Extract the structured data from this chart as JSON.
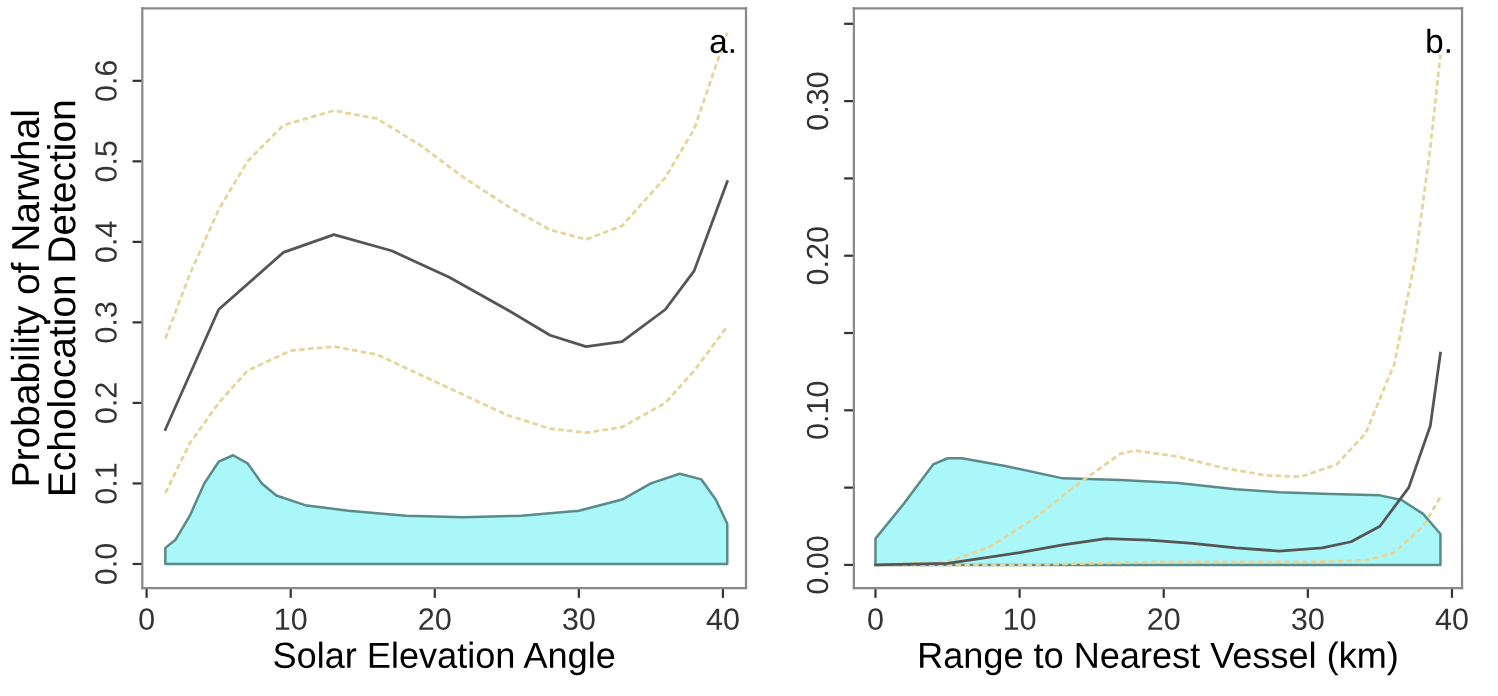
{
  "chart_data": [
    {
      "type": "line",
      "ylabel": "Probability of Narwhal\nEcholocation Detection",
      "xlabel": "Solar Elevation Angle",
      "annotations": [
        "a."
      ],
      "xlim": [
        -0.3,
        41.6
      ],
      "ylim": [
        -0.03,
        0.69
      ],
      "xticks": [
        0,
        10,
        20,
        30,
        40
      ],
      "yticks": [
        {
          "value": 0,
          "label": "0.0"
        },
        0.1,
        0.2,
        0.3,
        0.4,
        0.5,
        0.6
      ],
      "grid": false,
      "legend": false,
      "series": [
        {
          "type": "area",
          "color": "#aaf7fa",
          "x": [
            1.3,
            2,
            3,
            4,
            5,
            6,
            7,
            8,
            9,
            11,
            14,
            18,
            22,
            26,
            30,
            33,
            35,
            37,
            38.5,
            39.5,
            40.3
          ],
          "values": [
            0.02,
            0.03,
            0.06,
            0.1,
            0.127,
            0.135,
            0.125,
            0.1,
            0.085,
            0.073,
            0.066,
            0.06,
            0.058,
            0.06,
            0.066,
            0.08,
            0.1,
            0.112,
            0.105,
            0.08,
            0.05
          ]
        },
        {
          "color": "#e6d49a",
          "line_style": "dotted",
          "x": [
            1.3,
            3,
            5,
            7,
            9.5,
            13,
            16,
            19,
            22,
            25,
            28,
            30.5,
            33,
            36,
            38,
            40.3
          ],
          "values": [
            0.28,
            0.36,
            0.44,
            0.5,
            0.545,
            0.563,
            0.553,
            0.52,
            0.48,
            0.445,
            0.415,
            0.403,
            0.42,
            0.48,
            0.54,
            0.66
          ]
        },
        {
          "color": "#e6d49a",
          "line_style": "dotted",
          "x": [
            1.3,
            3,
            5,
            7,
            10,
            13,
            16,
            19,
            22,
            25,
            28,
            30.5,
            33,
            36,
            38,
            40.3
          ],
          "values": [
            0.088,
            0.15,
            0.2,
            0.24,
            0.265,
            0.27,
            0.26,
            0.235,
            0.21,
            0.185,
            0.168,
            0.163,
            0.17,
            0.2,
            0.24,
            0.295
          ]
        },
        {
          "color": "#555555",
          "line_style": "solid",
          "x": [
            1.3,
            5,
            9.5,
            13,
            17,
            21,
            25,
            28,
            30.5,
            33,
            36,
            38,
            40.3
          ],
          "values": [
            0.167,
            0.316,
            0.387,
            0.409,
            0.389,
            0.356,
            0.316,
            0.284,
            0.27,
            0.276,
            0.316,
            0.364,
            0.475
          ]
        }
      ]
    },
    {
      "type": "line",
      "xlabel": "Range to Nearest Vessel (km)",
      "annotations": [
        "b."
      ],
      "xlim": [
        -1.5,
        40.7
      ],
      "ylim": [
        -0.015,
        0.36
      ],
      "xticks": [
        0,
        10,
        20,
        30,
        40
      ],
      "yticks": [
        {
          "value": 0,
          "label": "0.00"
        },
        {
          "value": 0.05,
          "label": null
        },
        {
          "value": 0.1,
          "label": "0.10"
        },
        {
          "value": 0.15,
          "label": null
        },
        {
          "value": 0.2,
          "label": "0.20"
        },
        {
          "value": 0.25,
          "label": null
        },
        {
          "value": 0.3,
          "label": "0.30"
        },
        {
          "value": 0.35,
          "label": null
        }
      ],
      "grid": false,
      "legend": false,
      "series": [
        {
          "type": "area",
          "color": "#aaf7fa",
          "x": [
            0,
            2,
            4,
            5,
            6,
            9,
            13,
            17,
            21,
            25,
            28,
            31,
            35,
            36.5,
            38,
            39.2
          ],
          "values": [
            0.017,
            0.04,
            0.065,
            0.069,
            0.069,
            0.064,
            0.056,
            0.055,
            0.053,
            0.049,
            0.047,
            0.046,
            0.045,
            0.042,
            0.033,
            0.02
          ]
        },
        {
          "color": "#e6d49a",
          "line_style": "dotted",
          "x": [
            0,
            5,
            8,
            11,
            14,
            17,
            18,
            21,
            24,
            27,
            29.5,
            32,
            34,
            36,
            37.5,
            38.5,
            39.2
          ],
          "values": [
            0,
            0.002,
            0.012,
            0.03,
            0.052,
            0.072,
            0.074,
            0.07,
            0.063,
            0.058,
            0.057,
            0.065,
            0.085,
            0.13,
            0.2,
            0.27,
            0.33
          ]
        },
        {
          "color": "#e6d49a",
          "line_style": "dotted",
          "x": [
            0,
            10,
            20,
            30,
            34,
            36,
            38,
            39.2
          ],
          "values": [
            0,
            0,
            0.002,
            0.002,
            0.003,
            0.008,
            0.025,
            0.044
          ]
        },
        {
          "color": "#555555",
          "line_style": "solid",
          "x": [
            0,
            5,
            10,
            13,
            16,
            19,
            22,
            25,
            28,
            31,
            33,
            35,
            37,
            38.5,
            39.2
          ],
          "values": [
            0,
            0.001,
            0.008,
            0.013,
            0.017,
            0.016,
            0.014,
            0.011,
            0.009,
            0.011,
            0.015,
            0.025,
            0.05,
            0.09,
            0.137
          ]
        }
      ]
    }
  ]
}
